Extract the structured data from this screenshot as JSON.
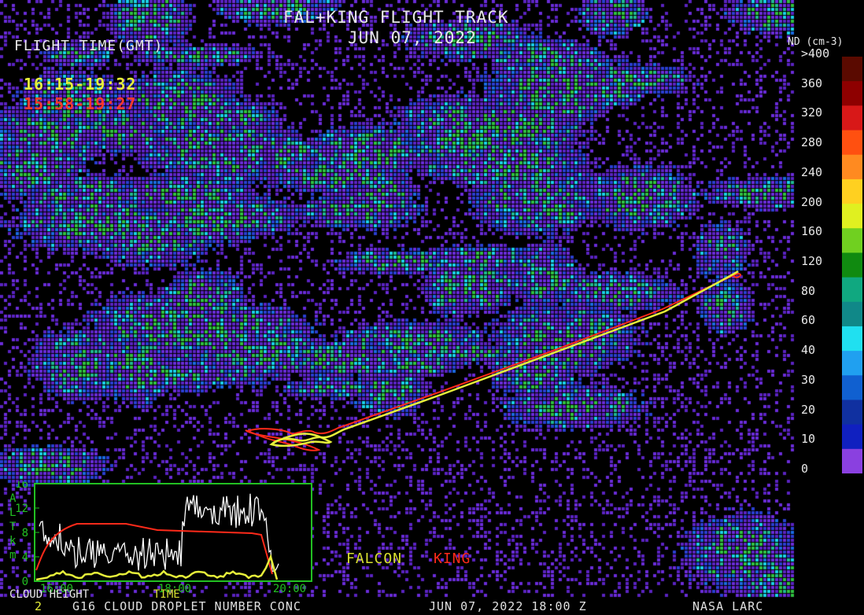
{
  "map": {
    "title": "FAL+KING FLIGHT TRACK",
    "date": "JUN 07, 2022",
    "flight_time_label": "FLIGHT TIME(GMT)",
    "falcon_time": "16:15-19:32",
    "king_time": "15:58-19:27",
    "legend_falcon": "FALCON",
    "legend_king": "KING",
    "colors": {
      "falcon": "#e6ef3a",
      "king": "#ff3a2a",
      "frame": "#22c022"
    }
  },
  "colorbar": {
    "unit": "ND (cm-3)",
    "ticks": [
      ">400",
      "360",
      "320",
      "280",
      "240",
      "200",
      "160",
      "120",
      "80",
      "60",
      "40",
      "30",
      "20",
      "10",
      "0"
    ],
    "colors": [
      "#5a0a00",
      "#8e0000",
      "#d81818",
      "#ff5010",
      "#ff8a20",
      "#ffd020",
      "#e0f020",
      "#70d020",
      "#108a10",
      "#10a880",
      "#108888",
      "#20e0f0",
      "#20a0f0",
      "#1060d0",
      "#1030a0",
      "#1020c0",
      "#8a40e0"
    ]
  },
  "inset": {
    "yaxis_letters": [
      "A",
      "L",
      "T",
      "k",
      "m"
    ],
    "yticks": [
      "0",
      "4",
      "8",
      "12",
      "16"
    ],
    "xticks": [
      "16:00",
      "18:00",
      "20:00"
    ],
    "cloud_height_label": "CLOUD HEIGHT",
    "time_label": "TIME"
  },
  "footer": {
    "num": "2",
    "product": "G16 CLOUD DROPLET NUMBER CONC",
    "datetime": "JUN 07, 2022 18:00 Z",
    "credit": "NASA LARC"
  }
}
